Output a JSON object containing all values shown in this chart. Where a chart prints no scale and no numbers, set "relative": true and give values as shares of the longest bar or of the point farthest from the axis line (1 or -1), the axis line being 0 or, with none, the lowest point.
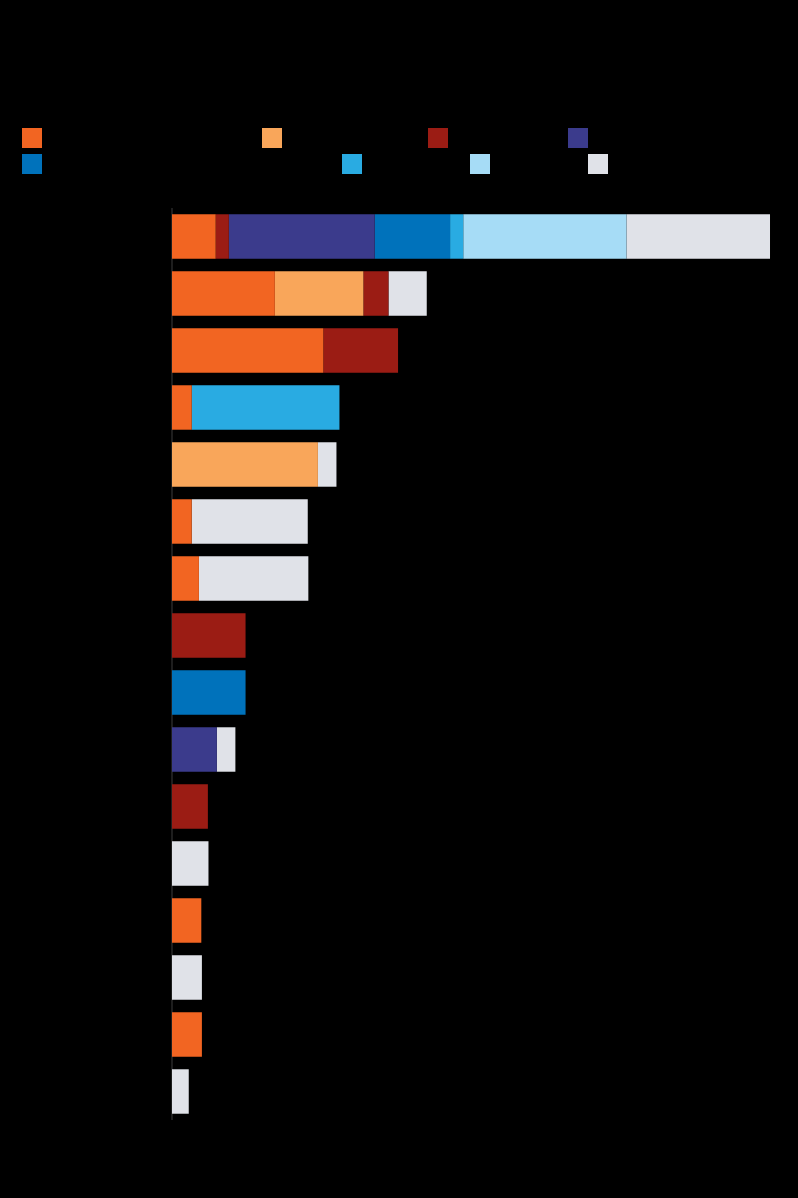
{
  "chart_data": {
    "type": "bar",
    "orientation": "horizontal",
    "stacked": true,
    "relative": true,
    "categories": [
      null,
      null,
      null,
      null,
      null,
      null,
      null,
      null,
      null,
      null,
      null,
      null,
      null,
      null,
      null,
      null
    ],
    "series": [
      {
        "color": "#f26522",
        "values": [
          0.073,
          0.172,
          0.253,
          0.033,
          null,
          0.033,
          0.045,
          null,
          null,
          null,
          null,
          null,
          0.049,
          null,
          0.05,
          null
        ]
      },
      {
        "color": "#f9a65a",
        "values": [
          null,
          0.148,
          null,
          null,
          0.244,
          null,
          null,
          null,
          null,
          null,
          null,
          null,
          null,
          null,
          null,
          null
        ]
      },
      {
        "color": "#9b1c14",
        "values": [
          0.022,
          0.042,
          0.125,
          null,
          null,
          null,
          null,
          0.123,
          null,
          null,
          0.06,
          null,
          null,
          null,
          null,
          null
        ]
      },
      {
        "color": "#3b3b8c",
        "values": [
          0.244,
          null,
          null,
          null,
          null,
          null,
          null,
          null,
          null,
          0.075,
          null,
          null,
          null,
          null,
          null,
          null
        ]
      },
      {
        "color": "#0072bb",
        "values": [
          0.126,
          null,
          null,
          null,
          null,
          null,
          null,
          null,
          0.123,
          null,
          null,
          null,
          null,
          null,
          null,
          null
        ]
      },
      {
        "color": "#29abe2",
        "values": [
          0.022,
          null,
          null,
          0.247,
          null,
          null,
          null,
          null,
          null,
          null,
          null,
          null,
          null,
          null,
          null,
          null
        ]
      },
      {
        "color": "#a6dcf6",
        "values": [
          0.273,
          null,
          null,
          null,
          null,
          null,
          null,
          null,
          null,
          null,
          null,
          null,
          null,
          null,
          null,
          null
        ]
      },
      {
        "color": "#e0e2e8",
        "values": [
          0.24,
          0.064,
          null,
          null,
          0.031,
          0.194,
          0.183,
          null,
          null,
          0.031,
          null,
          0.061,
          null,
          0.05,
          null,
          0.028
        ]
      }
    ]
  }
}
